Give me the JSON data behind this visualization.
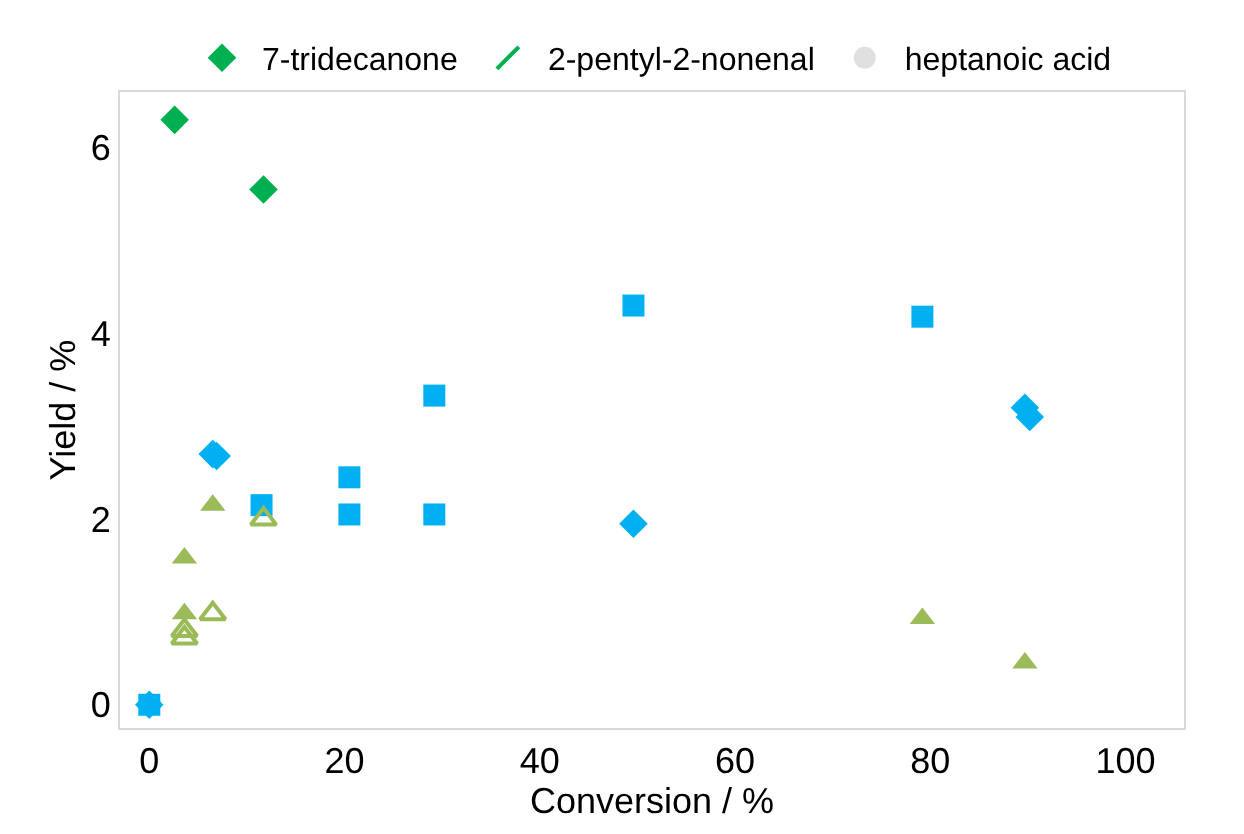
{
  "chart_data": {
    "type": "scatter",
    "xlabel": "Conversion / %",
    "ylabel": "Yield / %",
    "xlim": [
      -3,
      106
    ],
    "ylim": [
      -0.25,
      6.6
    ],
    "xticks": [
      0,
      20,
      40,
      60,
      80,
      100
    ],
    "yticks": [
      0,
      2,
      4,
      6
    ],
    "legend": "top",
    "series": [
      {
        "name": "7-tridecanone",
        "color": "#00b050",
        "marker": "diamond",
        "x": [
          2.6,
          11.7
        ],
        "values": [
          6.3,
          5.55
        ]
      },
      {
        "name": "2-pentyl-2-nonenal",
        "color": "#00b050",
        "marker": "cross",
        "x": [
          null
        ],
        "values": [
          null
        ]
      },
      {
        "name": "heptanoic acid",
        "color": "#e0e0e0",
        "marker": "circle",
        "x": [
          null
        ],
        "values": [
          null
        ]
      },
      {
        "color": "#00b0f0",
        "marker": "square",
        "x": [
          0,
          11.5,
          20.5,
          20.5,
          29.2,
          29.2,
          49.6,
          79.2
        ],
        "values": [
          0,
          2.15,
          2.45,
          2.05,
          3.33,
          2.05,
          4.3,
          4.18
        ]
      },
      {
        "color": "#00b0f0",
        "marker": "diamond",
        "x": [
          0,
          6.5,
          6.9,
          49.6,
          89.7,
          90.2
        ],
        "values": [
          0,
          2.7,
          2.68,
          1.95,
          3.2,
          3.1
        ]
      },
      {
        "color": "#9bbb59",
        "marker": "triangle",
        "x": [
          3.6,
          3.6,
          6.5,
          79.2,
          89.7
        ],
        "values": [
          0.98,
          1.58,
          2.15,
          0.93,
          0.45
        ]
      },
      {
        "color": "#9bbb59",
        "marker": "triangle-open",
        "x": [
          3.6,
          3.6,
          6.5,
          11.7
        ],
        "values": [
          0.72,
          0.8,
          0.98,
          2.0
        ]
      }
    ]
  }
}
